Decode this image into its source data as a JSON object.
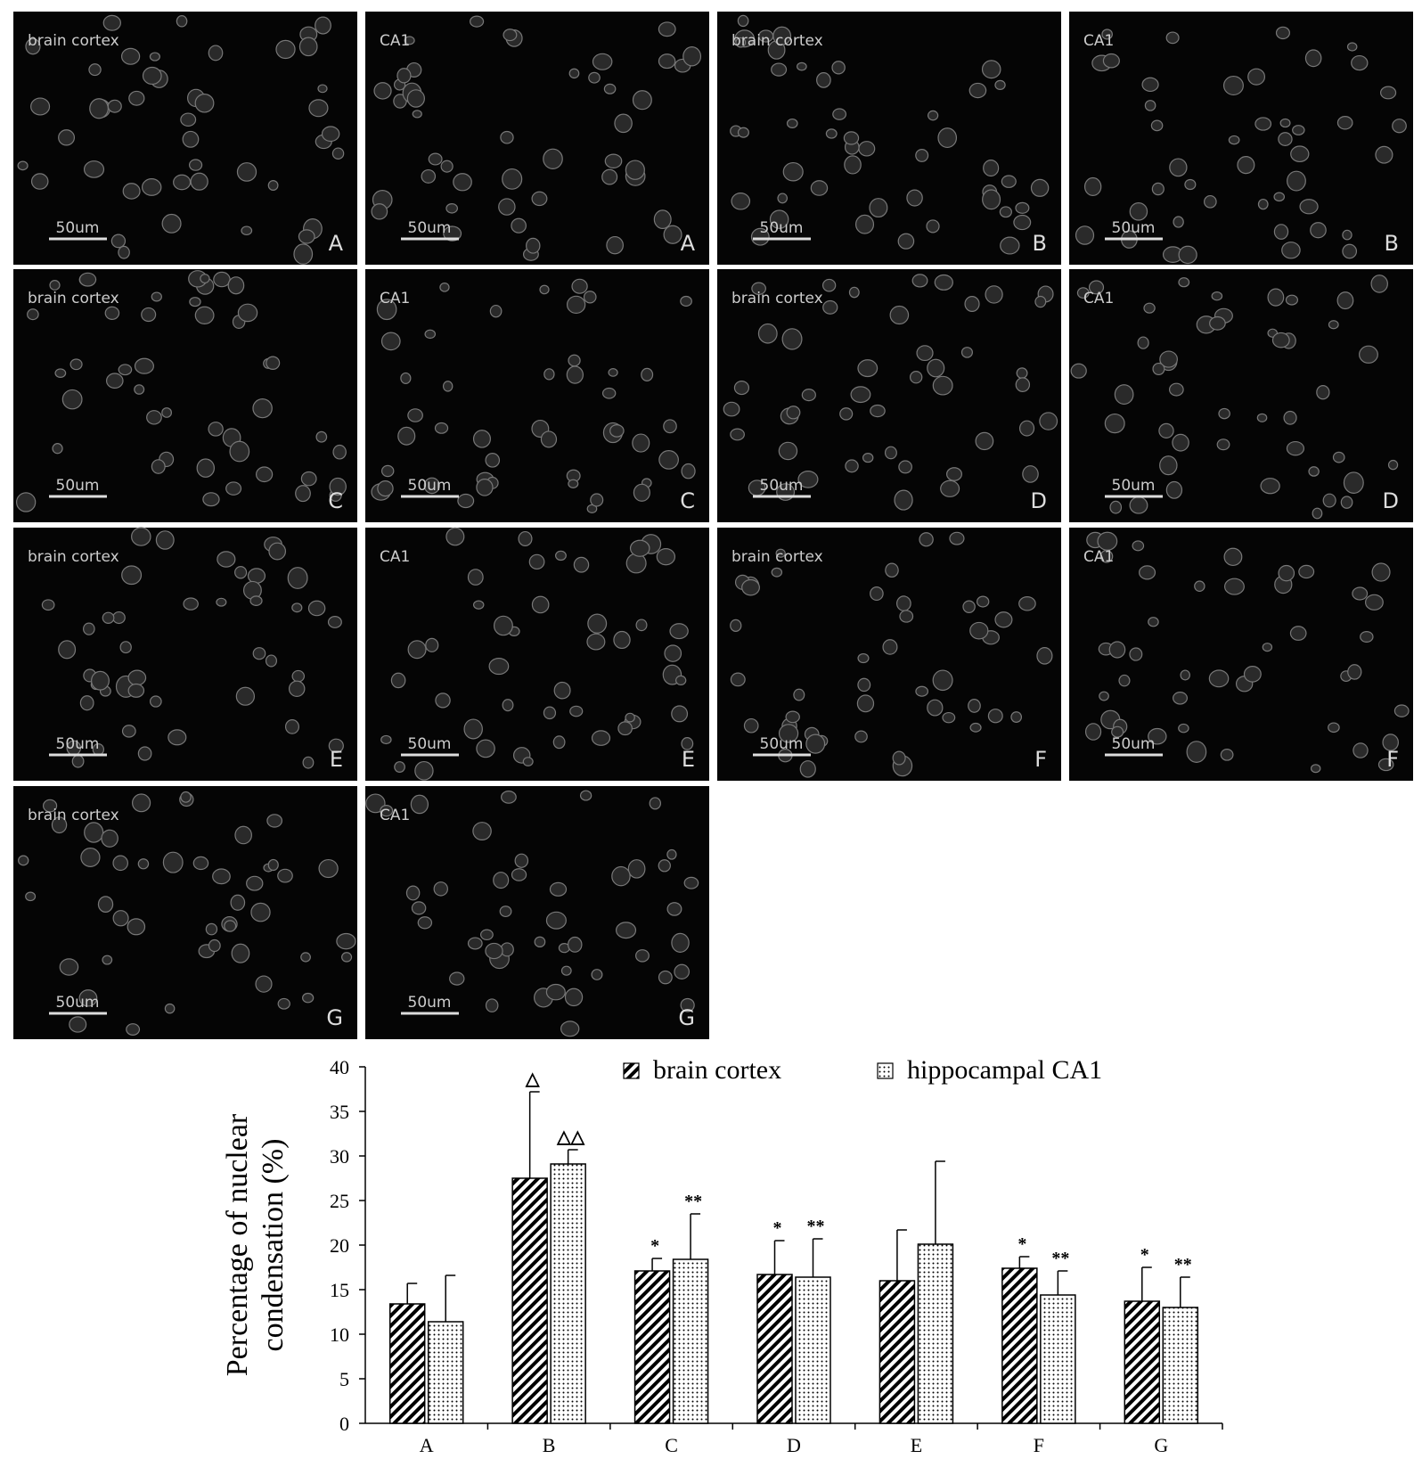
{
  "panels": [
    {
      "label": "brain cortex",
      "scale": "50um",
      "letter": "A"
    },
    {
      "label": "CA1",
      "scale": "50um",
      "letter": "A"
    },
    {
      "label": "brain cortex",
      "scale": "50um",
      "letter": "B"
    },
    {
      "label": "CA1",
      "scale": "50um",
      "letter": "B"
    },
    {
      "label": "brain cortex",
      "scale": "50um",
      "letter": "C"
    },
    {
      "label": "CA1",
      "scale": "50um",
      "letter": "C"
    },
    {
      "label": "brain cortex",
      "scale": "50um",
      "letter": "D"
    },
    {
      "label": "CA1",
      "scale": "50um",
      "letter": "D"
    },
    {
      "label": "brain cortex",
      "scale": "50um",
      "letter": "E"
    },
    {
      "label": "CA1",
      "scale": "50um",
      "letter": "E"
    },
    {
      "label": "brain cortex",
      "scale": "50um",
      "letter": "F"
    },
    {
      "label": "CA1",
      "scale": "50um",
      "letter": "F"
    },
    {
      "label": "brain cortex",
      "scale": "50um",
      "letter": "G"
    },
    {
      "label": "CA1",
      "scale": "50um",
      "letter": "G"
    }
  ],
  "chart_data": {
    "type": "bar",
    "ylabel": [
      "Percentage of nuclear",
      "condensation (%)"
    ],
    "categories": [
      "A",
      "B",
      "C",
      "D",
      "E",
      "F",
      "G"
    ],
    "series": [
      {
        "name": "brain cortex",
        "pattern": "hatch",
        "values": [
          13.4,
          27.5,
          17.1,
          16.7,
          16.0,
          17.4,
          13.7
        ],
        "errors": [
          2.3,
          9.7,
          1.4,
          3.8,
          5.7,
          1.3,
          3.8
        ],
        "annotations": [
          null,
          "△",
          "*",
          "*",
          null,
          "*",
          "*"
        ]
      },
      {
        "name": "hippocampal  CA1",
        "pattern": "dots",
        "values": [
          11.4,
          29.1,
          18.4,
          16.4,
          20.1,
          14.4,
          13.0
        ],
        "errors": [
          5.2,
          1.6,
          5.1,
          4.3,
          9.3,
          2.7,
          3.4
        ],
        "annotations": [
          null,
          "△△",
          "**",
          "**",
          null,
          "**",
          "**"
        ]
      }
    ],
    "ylim": [
      0,
      40
    ],
    "yticks": [
      0,
      5,
      10,
      15,
      20,
      25,
      30,
      35,
      40
    ]
  }
}
